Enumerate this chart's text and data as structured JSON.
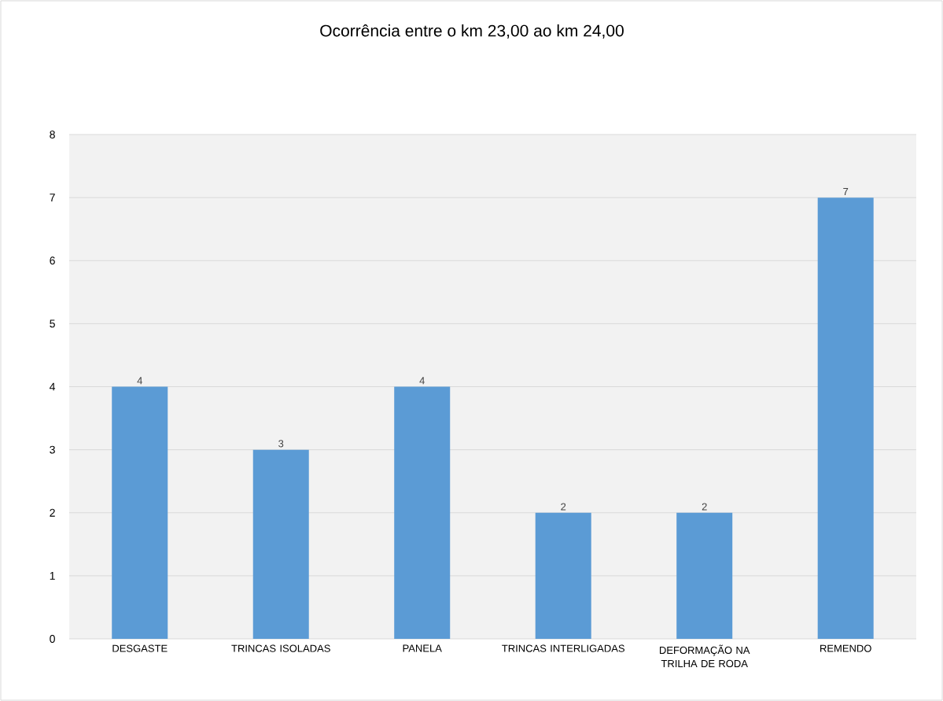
{
  "chart_data": {
    "type": "bar",
    "title": "Ocorrência entre o km 23,00 ao km 24,00",
    "categories": [
      "DESGASTE",
      "TRINCAS ISOLADAS",
      "PANELA",
      "TRINCAS INTERLIGADAS",
      "DEFORMAÇÃO NA TRILHA DE RODA",
      "REMENDO"
    ],
    "values": [
      4,
      3,
      4,
      2,
      2,
      7
    ],
    "color": "#5b9bd5",
    "ylim": [
      0,
      8
    ],
    "yticks": [
      0,
      1,
      2,
      3,
      4,
      5,
      6,
      7,
      8
    ],
    "grid": "y",
    "data_labels": true
  }
}
